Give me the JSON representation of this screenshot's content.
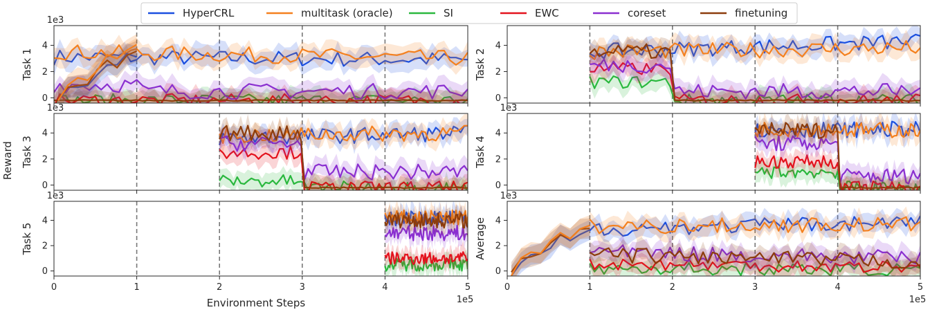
{
  "chart_data": {
    "type": "line",
    "ylabel": "Reward",
    "xlabel": "Environment Steps",
    "x_multiplier": "1e5",
    "y_multiplier": "1e3",
    "xlim": [
      0,
      5
    ],
    "ylim": [
      -0.4,
      5.5
    ],
    "xticks": [
      "0",
      "1",
      "2",
      "3",
      "4",
      "5"
    ],
    "yticks": [
      "0",
      "2",
      "4"
    ],
    "task_boundaries": [
      1,
      2,
      3,
      4
    ],
    "legend_position": "top-center",
    "grid": false,
    "series": [
      {
        "name": "HyperCRL",
        "color": "#1a4fe0"
      },
      {
        "name": "multitask (oracle)",
        "color": "#f4801e"
      },
      {
        "name": "SI",
        "color": "#2ab83e"
      },
      {
        "name": "EWC",
        "color": "#e3121d"
      },
      {
        "name": "coreset",
        "color": "#8a2fd0"
      },
      {
        "name": "finetuning",
        "color": "#8c3c0c"
      }
    ],
    "panels": [
      {
        "label": "Task 1",
        "x_start": 0,
        "values": {
          "HyperCRL": [
            3.1,
            2.9
          ],
          "multitask (oracle)": [
            3.5,
            3.0
          ],
          "SI": [
            -0.2,
            -0.2
          ],
          "EWC": [
            -0.2,
            -0.2
          ],
          "coreset": [
            1.0,
            0.5
          ],
          "finetuning": [
            -0.2,
            -0.2
          ]
        },
        "warmup": [
          -0.3,
          0.8,
          1.2,
          1.3,
          2.2,
          2.8,
          2.6,
          3.3,
          3.6
        ]
      },
      {
        "label": "Task 2",
        "x_start": 1,
        "values": {
          "HyperCRL": [
            3.5,
            4.3
          ],
          "multitask (oracle)": [
            3.5,
            3.8
          ],
          "SI": [
            1.2,
            -0.2
          ],
          "EWC": [
            2.2,
            -0.2
          ],
          "coreset": [
            2.5,
            0.5
          ],
          "finetuning": [
            3.5,
            -0.2
          ]
        }
      },
      {
        "label": "Task 3",
        "x_start": 2,
        "values": {
          "HyperCRL": [
            3.6,
            4.0
          ],
          "multitask (oracle)": [
            3.8,
            4.0
          ],
          "SI": [
            0.3,
            -0.2
          ],
          "EWC": [
            2.5,
            -0.2
          ],
          "coreset": [
            3.2,
            1.0
          ],
          "finetuning": [
            4.0,
            -0.2
          ]
        }
      },
      {
        "label": "Task 4",
        "x_start": 3,
        "values": {
          "HyperCRL": [
            4.2,
            4.3
          ],
          "multitask (oracle)": [
            4.3,
            4.2
          ],
          "SI": [
            1.0,
            -0.2
          ],
          "EWC": [
            1.8,
            -0.2
          ],
          "coreset": [
            3.2,
            0.7
          ],
          "finetuning": [
            4.2,
            -0.2
          ]
        }
      },
      {
        "label": "Task 5",
        "x_start": 4,
        "values": {
          "HyperCRL": [
            4.1,
            4.2
          ],
          "multitask (oracle)": [
            4.2,
            4.2
          ],
          "SI": [
            0.5,
            0.7
          ],
          "EWC": [
            1.0,
            1.0
          ],
          "coreset": [
            3.0,
            3.2
          ],
          "finetuning": [
            4.0,
            4.3
          ]
        }
      },
      {
        "label": "Average",
        "x_start": 1,
        "values": {
          "HyperCRL": [
            3.3,
            3.9
          ],
          "multitask (oracle)": [
            3.5,
            3.7
          ],
          "SI": [
            0.2,
            0.1
          ],
          "EWC": [
            0.6,
            0.3
          ],
          "coreset": [
            1.5,
            1.0
          ],
          "finetuning": [
            1.3,
            0.7
          ]
        },
        "warmup": [
          -0.3,
          0.8,
          1.2,
          1.3,
          2.2,
          2.8,
          2.6,
          3.3,
          3.6
        ]
      }
    ]
  }
}
